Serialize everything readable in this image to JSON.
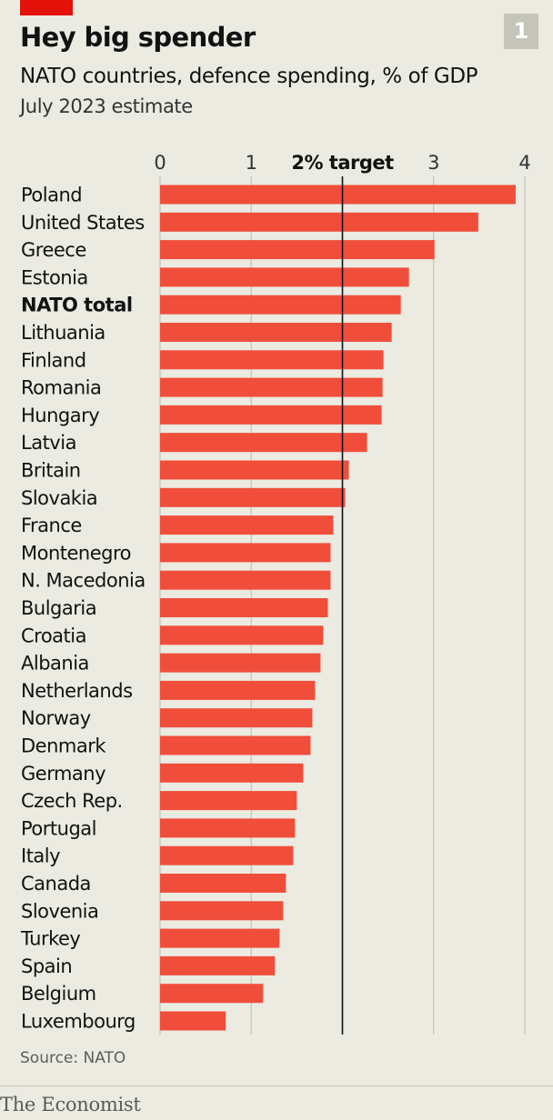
{
  "header": {
    "title": "Hey big spender",
    "subtitle": "NATO countries, defence spending, % of GDP",
    "note": "July 2023 estimate",
    "chart_number": "1"
  },
  "footer": {
    "source": "Source: NATO",
    "brand": "The Economist"
  },
  "colors": {
    "bar": "#f04e3b",
    "background": "#ebebe2",
    "accent": "#e3120b",
    "target_line": "#121212",
    "gridline": "#c4c4b8"
  },
  "chart_data": {
    "type": "bar",
    "orientation": "horizontal",
    "title": "Hey big spender",
    "subtitle": "NATO countries, defence spending, % of GDP",
    "xlim": [
      0,
      4
    ],
    "x_ticks": [
      {
        "value": 0,
        "label": "0"
      },
      {
        "value": 1,
        "label": "1"
      },
      {
        "value": 2,
        "label": "2% target"
      },
      {
        "value": 3,
        "label": "3"
      },
      {
        "value": 4,
        "label": "4"
      }
    ],
    "target": 2,
    "axis_position": "top",
    "grid": true,
    "highlighted_category": "NATO total",
    "categories": [
      "Poland",
      "United States",
      "Greece",
      "Estonia",
      "NATO total",
      "Lithuania",
      "Finland",
      "Romania",
      "Hungary",
      "Latvia",
      "Britain",
      "Slovakia",
      "France",
      "Montenegro",
      "N. Macedonia",
      "Bulgaria",
      "Croatia",
      "Albania",
      "Netherlands",
      "Norway",
      "Denmark",
      "Germany",
      "Czech Rep.",
      "Portugal",
      "Italy",
      "Canada",
      "Slovenia",
      "Turkey",
      "Spain",
      "Belgium",
      "Luxembourg"
    ],
    "values": [
      3.9,
      3.49,
      3.01,
      2.73,
      2.64,
      2.54,
      2.45,
      2.44,
      2.43,
      2.27,
      2.07,
      2.03,
      1.9,
      1.87,
      1.87,
      1.84,
      1.79,
      1.76,
      1.7,
      1.67,
      1.65,
      1.57,
      1.5,
      1.48,
      1.46,
      1.38,
      1.35,
      1.31,
      1.26,
      1.13,
      0.72
    ]
  }
}
